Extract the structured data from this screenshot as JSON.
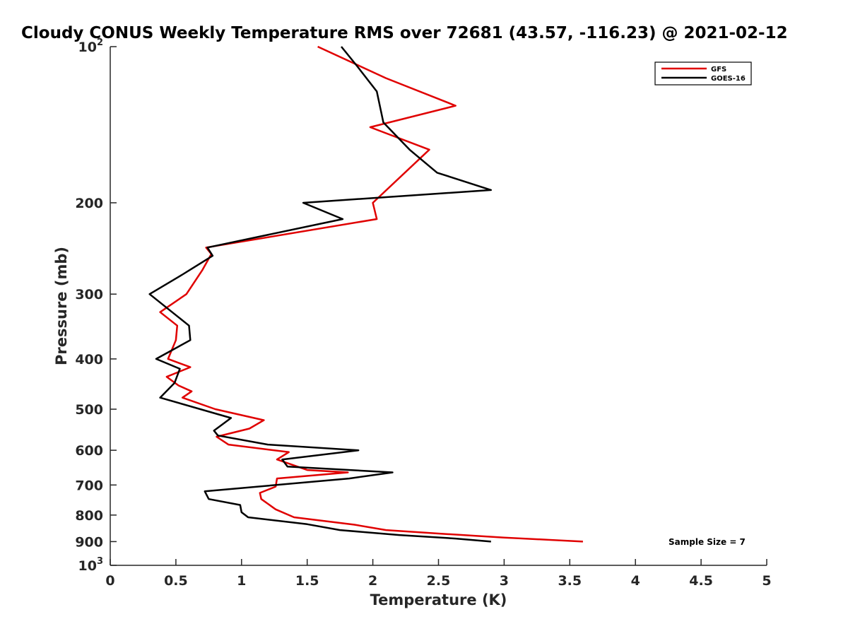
{
  "chart_data": {
    "type": "line",
    "title": "Cloudy CONUS Weekly Temperature RMS over 72681 (43.57, -116.23) @ 2021-02-12",
    "xlabel": "Temperature (K)",
    "ylabel": "Pressure (mb)",
    "xlim": [
      0,
      5
    ],
    "ylim": [
      100,
      1000
    ],
    "y_scale": "log",
    "y_reversed": true,
    "x_ticks": [
      "0",
      "0.5",
      "1",
      "1.5",
      "2",
      "2.5",
      "3",
      "3.5",
      "4",
      "4.5",
      "5"
    ],
    "y_ticks": [
      {
        "value": 100,
        "base": "10",
        "exp": "2"
      },
      {
        "value": 200,
        "label": "200"
      },
      {
        "value": 300,
        "label": "300"
      },
      {
        "value": 400,
        "label": "400"
      },
      {
        "value": 500,
        "label": "500"
      },
      {
        "value": 600,
        "label": "600"
      },
      {
        "value": 700,
        "label": "700"
      },
      {
        "value": 800,
        "label": "800"
      },
      {
        "value": 900,
        "label": "900"
      },
      {
        "value": 1000,
        "base": "10",
        "exp": "3"
      }
    ],
    "legend": {
      "position": "top-right"
    },
    "annotation": "Sample Size = 7",
    "series": [
      {
        "name": "GFS",
        "color": "#e00000",
        "points": [
          [
            1.58,
            100
          ],
          [
            2.1,
            115
          ],
          [
            2.63,
            130
          ],
          [
            1.98,
            143
          ],
          [
            2.43,
            158
          ],
          [
            2.0,
            200
          ],
          [
            2.03,
            215
          ],
          [
            0.73,
            244
          ],
          [
            0.77,
            251
          ],
          [
            0.7,
            270
          ],
          [
            0.58,
            300
          ],
          [
            0.38,
            325
          ],
          [
            0.51,
            345
          ],
          [
            0.5,
            368
          ],
          [
            0.44,
            400
          ],
          [
            0.61,
            415
          ],
          [
            0.43,
            433
          ],
          [
            0.52,
            450
          ],
          [
            0.62,
            462
          ],
          [
            0.55,
            475
          ],
          [
            0.8,
            500
          ],
          [
            1.17,
            525
          ],
          [
            1.06,
            545
          ],
          [
            0.81,
            565
          ],
          [
            0.9,
            585
          ],
          [
            1.36,
            605
          ],
          [
            1.27,
            625
          ],
          [
            1.5,
            655
          ],
          [
            1.81,
            662
          ],
          [
            1.27,
            680
          ],
          [
            1.26,
            705
          ],
          [
            1.14,
            725
          ],
          [
            1.15,
            745
          ],
          [
            1.26,
            780
          ],
          [
            1.4,
            808
          ],
          [
            1.86,
            835
          ],
          [
            2.1,
            855
          ],
          [
            2.55,
            870
          ],
          [
            3.0,
            884
          ],
          [
            3.6,
            900
          ]
        ]
      },
      {
        "name": "GOES-16",
        "color": "#000000",
        "points": [
          [
            1.76,
            100
          ],
          [
            1.88,
            109
          ],
          [
            2.03,
            122
          ],
          [
            2.08,
            140
          ],
          [
            2.28,
            158
          ],
          [
            2.49,
            175
          ],
          [
            2.9,
            189
          ],
          [
            1.47,
            200
          ],
          [
            1.77,
            215
          ],
          [
            0.74,
            244
          ],
          [
            0.78,
            253
          ],
          [
            0.55,
            275
          ],
          [
            0.3,
            300
          ],
          [
            0.6,
            345
          ],
          [
            0.61,
            368
          ],
          [
            0.35,
            400
          ],
          [
            0.53,
            418
          ],
          [
            0.49,
            445
          ],
          [
            0.38,
            475
          ],
          [
            0.92,
            520
          ],
          [
            0.79,
            550
          ],
          [
            0.82,
            562
          ],
          [
            1.2,
            585
          ],
          [
            1.89,
            600
          ],
          [
            1.31,
            625
          ],
          [
            1.35,
            645
          ],
          [
            2.15,
            662
          ],
          [
            1.82,
            680
          ],
          [
            0.72,
            720
          ],
          [
            0.75,
            745
          ],
          [
            0.99,
            765
          ],
          [
            1.0,
            790
          ],
          [
            1.05,
            808
          ],
          [
            1.5,
            833
          ],
          [
            1.75,
            855
          ],
          [
            2.2,
            874
          ],
          [
            2.63,
            888
          ],
          [
            2.9,
            900
          ]
        ]
      }
    ]
  }
}
